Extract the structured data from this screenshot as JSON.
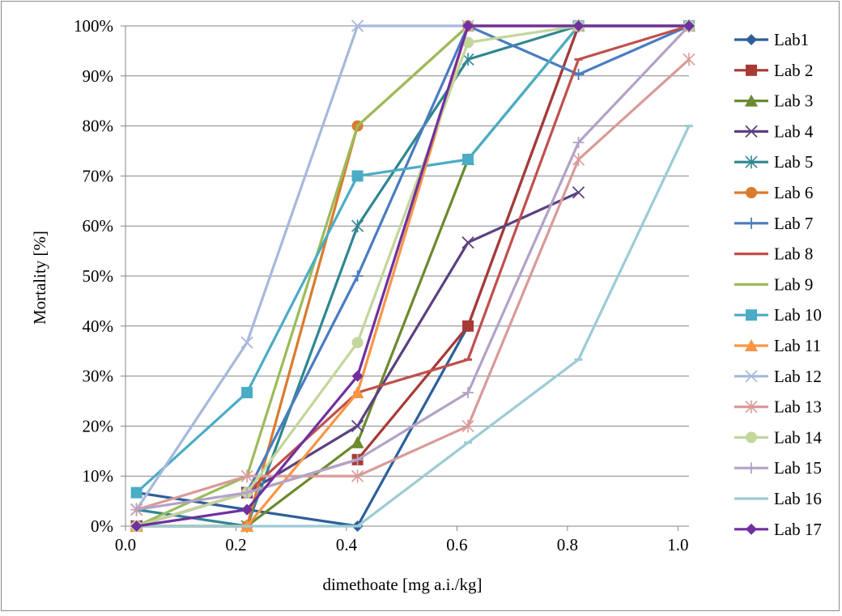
{
  "chart_data": {
    "type": "line",
    "xlabel": "dimethoate [mg a.i./kg]",
    "ylabel": "Mortality [%]",
    "xlim": [
      0,
      1.02
    ],
    "ylim": [
      0,
      100
    ],
    "x_ticks": [
      "0.0",
      "0.2",
      "0.4",
      "0.6",
      "0.8",
      "1.0"
    ],
    "y_ticks": [
      "0%",
      "10%",
      "20%",
      "30%",
      "40%",
      "50%",
      "60%",
      "70%",
      "80%",
      "90%",
      "100%"
    ],
    "grid": "horizontal",
    "legend_position": "right",
    "x": [
      0.02,
      0.22,
      0.42,
      0.62,
      0.82,
      1.02
    ],
    "series": [
      {
        "name": "Lab1",
        "color": "#2e5f99",
        "marker": "diamond",
        "values": [
          6.7,
          3.3,
          0,
          40,
          100,
          100
        ]
      },
      {
        "name": "Lab 2",
        "color": "#a83a36",
        "marker": "square",
        "values": [
          0,
          6.7,
          13.3,
          40,
          100,
          100
        ]
      },
      {
        "name": "Lab 3",
        "color": "#6c8a2f",
        "marker": "triangle",
        "values": [
          0,
          0,
          16.7,
          73.3,
          100,
          100
        ]
      },
      {
        "name": "Lab 4",
        "color": "#5b4180",
        "marker": "x",
        "values": [
          0,
          6.7,
          20,
          56.7,
          66.7,
          null
        ]
      },
      {
        "name": "Lab 5",
        "color": "#2f8790",
        "marker": "star",
        "values": [
          3.3,
          0,
          60,
          93.3,
          100,
          100
        ]
      },
      {
        "name": "Lab 6",
        "color": "#d97b2d",
        "marker": "circle",
        "values": [
          0,
          0,
          80,
          100,
          100,
          100
        ]
      },
      {
        "name": "Lab 7",
        "color": "#4a7cc0",
        "marker": "plus",
        "values": [
          0,
          6.7,
          50,
          100,
          90.3,
          100
        ]
      },
      {
        "name": "Lab 8",
        "color": "#c0504d",
        "marker": "dash",
        "values": [
          0,
          6.7,
          26.7,
          33.3,
          93.3,
          100
        ]
      },
      {
        "name": "Lab 9",
        "color": "#9bbb59",
        "marker": "none",
        "values": [
          0,
          10,
          80,
          100,
          100,
          100
        ]
      },
      {
        "name": "Lab 10",
        "color": "#4bacc6",
        "marker": "square",
        "values": [
          6.7,
          26.7,
          70,
          73.3,
          100,
          100
        ]
      },
      {
        "name": "Lab 11",
        "color": "#f79646",
        "marker": "triangle",
        "values": [
          0,
          0,
          26.7,
          100,
          100,
          100
        ]
      },
      {
        "name": "Lab 12",
        "color": "#a6b9dc",
        "marker": "x",
        "values": [
          3.3,
          36.7,
          100,
          100,
          100,
          100
        ]
      },
      {
        "name": "Lab 13",
        "color": "#d99a98",
        "marker": "star",
        "values": [
          3.3,
          10,
          10,
          20,
          73.3,
          93.3
        ]
      },
      {
        "name": "Lab 14",
        "color": "#c3d69b",
        "marker": "circle",
        "values": [
          0,
          6.7,
          36.7,
          96.7,
          100,
          100
        ]
      },
      {
        "name": "Lab 15",
        "color": "#b3a2c7",
        "marker": "plus",
        "values": [
          3.3,
          6.7,
          13.3,
          26.7,
          76.7,
          100
        ]
      },
      {
        "name": "Lab 16",
        "color": "#9ccbd6",
        "marker": "dash",
        "values": [
          0,
          0,
          0,
          16.7,
          33.3,
          80
        ]
      },
      {
        "name": "Lab 17",
        "color": "#7030a0",
        "marker": "diamond",
        "values": [
          0,
          3.3,
          30,
          100,
          100,
          100
        ]
      }
    ]
  }
}
